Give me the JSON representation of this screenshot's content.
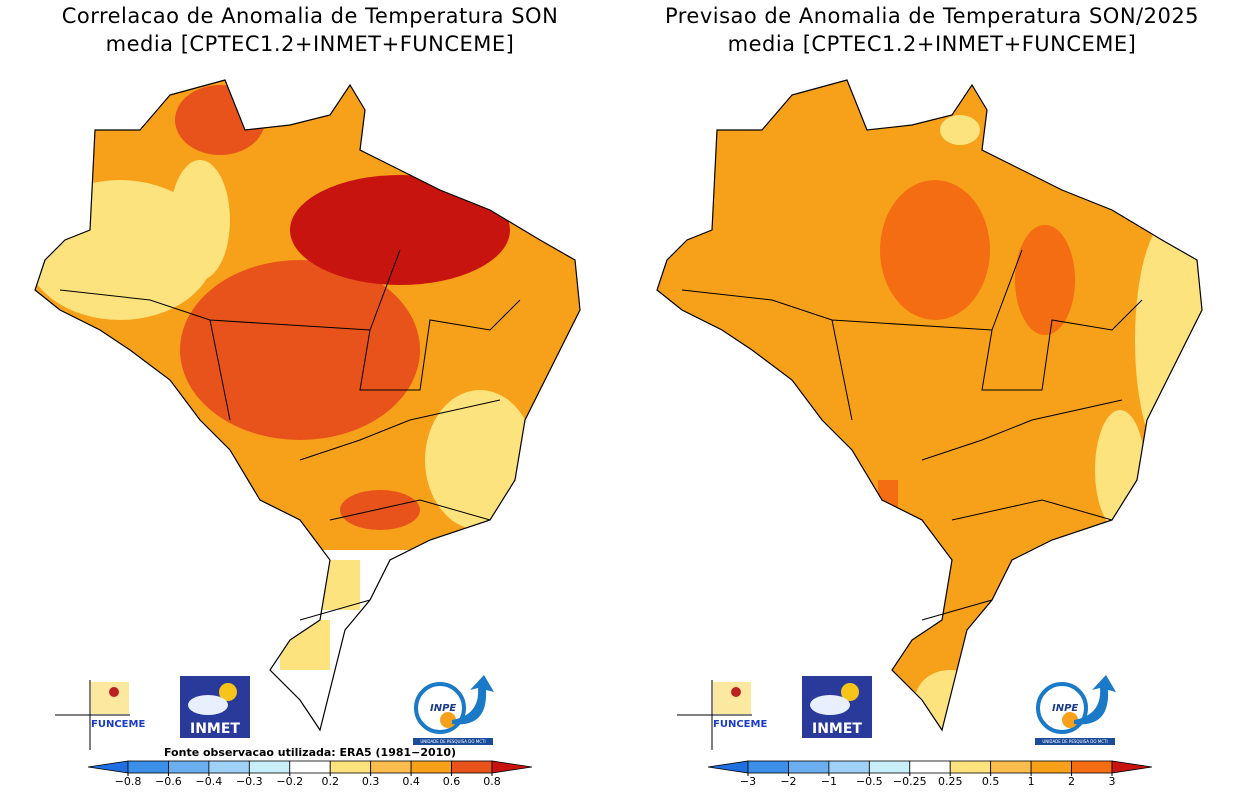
{
  "logos": {
    "funceme": "FUNCEME",
    "inmet": "INMET",
    "inpe": "INPE",
    "inpe_tagline": "UNIDADE DE PESQUISA DO MCTI"
  },
  "panels": [
    {
      "title": "Correlacao de Anomalia de Temperatura SON",
      "subtitle": "media [CPTEC1.2+INMET+FUNCEME]",
      "source": "Fonte observacao utilizada: ERA5 (1981−2010)",
      "colorbar": {
        "ticks": [
          {
            "value": -0.8,
            "label": "−0.8"
          },
          {
            "value": -0.6,
            "label": "−0.6"
          },
          {
            "value": -0.4,
            "label": "−0.4"
          },
          {
            "value": -0.3,
            "label": "−0.3"
          },
          {
            "value": -0.2,
            "label": "−0.2"
          },
          0.2,
          0.3,
          0.4,
          0.6,
          0.8
        ],
        "colors": [
          "#1e6fe0",
          "#3c8fe8",
          "#6aaef0",
          "#9fd0f5",
          "#c8eef8",
          "#ffffff",
          "#fde37d",
          "#fbbd4d",
          "#f7a11a",
          "#e8531c",
          "#c8140e"
        ]
      }
    },
    {
      "title": "Previsao de Anomalia de Temperatura SON/2025",
      "subtitle": "media [CPTEC1.2+INMET+FUNCEME]",
      "colorbar": {
        "ticks": [
          {
            "value": -3,
            "label": "−3"
          },
          {
            "value": -2,
            "label": "−2"
          },
          {
            "value": -1,
            "label": "−1"
          },
          {
            "value": -0.5,
            "label": "−0.5"
          },
          {
            "value": -0.25,
            "label": "−0.25"
          },
          0.25,
          0.5,
          1,
          2,
          3
        ],
        "colors": [
          "#1e6fe0",
          "#3c8fe8",
          "#6aaef0",
          "#9fd0f5",
          "#c8eef8",
          "#ffffff",
          "#fde37d",
          "#fbbd4d",
          "#f7a11a",
          "#f46d12",
          "#c8140e"
        ]
      }
    }
  ]
}
